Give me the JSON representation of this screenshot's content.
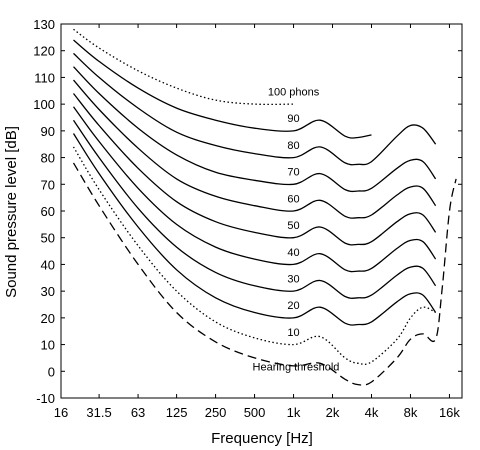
{
  "chart_data": {
    "type": "line",
    "xlabel": "Frequency [Hz]",
    "ylabel": "Sound pressure level [dB]",
    "x_scale": "log",
    "xlim": [
      16,
      20000
    ],
    "ylim": [
      -10,
      130
    ],
    "x_ticks": [
      {
        "value": 16,
        "label": "16"
      },
      {
        "value": 31.5,
        "label": "31.5"
      },
      {
        "value": 63,
        "label": "63"
      },
      {
        "value": 125,
        "label": "125"
      },
      {
        "value": 250,
        "label": "250"
      },
      {
        "value": 500,
        "label": "500"
      },
      {
        "value": 1000,
        "label": "1k"
      },
      {
        "value": 2000,
        "label": "2k"
      },
      {
        "value": 4000,
        "label": "4k"
      },
      {
        "value": 8000,
        "label": "8k"
      },
      {
        "value": 16000,
        "label": "16k"
      }
    ],
    "y_ticks": [
      {
        "value": 130,
        "label": "130"
      },
      {
        "value": 120,
        "label": "120"
      },
      {
        "value": 110,
        "label": "110"
      },
      {
        "value": 100,
        "label": "100"
      },
      {
        "value": 90,
        "label": "90"
      },
      {
        "value": 80,
        "label": "80"
      },
      {
        "value": 70,
        "label": "70"
      },
      {
        "value": 60,
        "label": "60"
      },
      {
        "value": 50,
        "label": "50"
      },
      {
        "value": 40,
        "label": "40"
      },
      {
        "value": 30,
        "label": "30"
      },
      {
        "value": 20,
        "label": "20"
      },
      {
        "value": 10,
        "label": "10"
      },
      {
        "value": 0,
        "label": "0"
      },
      {
        "value": -10,
        "label": "-10"
      }
    ],
    "grid": false,
    "legend": "none",
    "series": [
      {
        "name": "100 phons",
        "style": "dotted",
        "x": [
          20,
          31.5,
          63,
          125,
          250,
          500,
          1000
        ],
        "y": [
          128,
          121,
          112.5,
          106,
          101.5,
          100,
          100
        ]
      },
      {
        "name": "90",
        "style": "solid",
        "x": [
          20,
          31.5,
          63,
          125,
          250,
          500,
          1000,
          1600,
          2500,
          3150,
          4000
        ],
        "y": [
          124,
          116,
          106,
          98.5,
          94,
          91,
          90,
          94,
          88,
          87.5,
          88.5
        ]
      },
      {
        "name": "80",
        "style": "solid",
        "x": [
          20,
          31.5,
          63,
          125,
          250,
          500,
          1000,
          1600,
          2500,
          3150,
          4000,
          6300,
          8000,
          10000,
          12500
        ],
        "y": [
          119,
          110,
          98.5,
          89.5,
          84.5,
          81.5,
          80,
          84,
          78,
          77.5,
          78.5,
          88,
          92,
          91,
          85
        ]
      },
      {
        "name": "70",
        "style": "solid",
        "x": [
          20,
          31.5,
          63,
          125,
          250,
          500,
          1000,
          1600,
          2500,
          3150,
          4000,
          6300,
          8000,
          10000,
          12500
        ],
        "y": [
          114,
          104,
          91,
          81,
          74.5,
          71.5,
          70,
          74,
          68,
          67.5,
          68.5,
          76,
          79,
          78.5,
          72
        ]
      },
      {
        "name": "60",
        "style": "solid",
        "x": [
          20,
          31.5,
          63,
          125,
          250,
          500,
          1000,
          1600,
          2500,
          3150,
          4000,
          6300,
          8000,
          10000,
          12500
        ],
        "y": [
          109,
          98,
          83.5,
          72,
          65.5,
          62,
          60,
          64,
          58,
          57.5,
          58.5,
          66,
          69,
          68.5,
          62
        ]
      },
      {
        "name": "50",
        "style": "solid",
        "x": [
          20,
          31.5,
          63,
          125,
          250,
          500,
          1000,
          1600,
          2500,
          3150,
          4000,
          6300,
          8000,
          10000,
          12500
        ],
        "y": [
          104,
          92,
          76,
          63.5,
          56,
          52,
          50,
          54,
          48,
          47.5,
          48.5,
          56,
          59,
          58.5,
          52
        ]
      },
      {
        "name": "40",
        "style": "solid",
        "x": [
          20,
          31.5,
          63,
          125,
          250,
          500,
          1000,
          1600,
          2500,
          3150,
          4000,
          6300,
          8000,
          10000,
          12500
        ],
        "y": [
          99,
          86,
          68.5,
          55,
          46.5,
          42,
          40,
          44,
          38,
          37.5,
          38.5,
          46,
          49,
          48.5,
          42
        ]
      },
      {
        "name": "30",
        "style": "solid",
        "x": [
          20,
          31.5,
          63,
          125,
          250,
          500,
          1000,
          1600,
          2500,
          3150,
          4000,
          6300,
          8000,
          10000,
          12500
        ],
        "y": [
          94,
          80,
          61,
          46.5,
          37,
          32,
          30,
          34,
          28,
          27.5,
          28.5,
          36,
          39,
          38.5,
          32
        ]
      },
      {
        "name": "20",
        "style": "solid",
        "x": [
          20,
          31.5,
          63,
          125,
          250,
          500,
          1000,
          1600,
          2500,
          3150,
          4000,
          6300,
          8000,
          10000,
          12500
        ],
        "y": [
          89,
          74,
          54,
          38,
          27.5,
          22,
          20,
          24,
          18,
          17.5,
          18.5,
          26,
          29,
          28.5,
          22
        ]
      },
      {
        "name": "10",
        "style": "dotted",
        "x": [
          20,
          31.5,
          63,
          125,
          250,
          500,
          1000,
          1600,
          2500,
          3150,
          4000,
          6300,
          8000,
          10000,
          12500
        ],
        "y": [
          84,
          68,
          47,
          30,
          18.5,
          12.5,
          10,
          13,
          5,
          3,
          3.5,
          12,
          20,
          24,
          22
        ]
      },
      {
        "name": "Hearing threshold",
        "style": "dashed",
        "x": [
          20,
          31.5,
          63,
          125,
          250,
          500,
          1000,
          1600,
          2500,
          3150,
          4000,
          6300,
          8000,
          10000,
          12500,
          14000,
          16000,
          18000
        ],
        "y": [
          78,
          62,
          40,
          22,
          11,
          5,
          2,
          3,
          -3,
          -5,
          -4,
          5,
          12,
          14,
          12,
          30,
          60,
          72
        ]
      }
    ],
    "annotations": [
      {
        "text": "100 phons",
        "x": 1000,
        "y": 101
      },
      {
        "text": "90",
        "x": 1000,
        "y": 91
      },
      {
        "text": "80",
        "x": 1000,
        "y": 81
      },
      {
        "text": "70",
        "x": 1000,
        "y": 71
      },
      {
        "text": "60",
        "x": 1000,
        "y": 61
      },
      {
        "text": "50",
        "x": 1000,
        "y": 51
      },
      {
        "text": "40",
        "x": 1000,
        "y": 41
      },
      {
        "text": "30",
        "x": 1000,
        "y": 31
      },
      {
        "text": "20",
        "x": 1000,
        "y": 21
      },
      {
        "text": "10",
        "x": 1000,
        "y": 11
      },
      {
        "text": "Hearing threshold",
        "x": 500,
        "y": -2
      }
    ]
  }
}
